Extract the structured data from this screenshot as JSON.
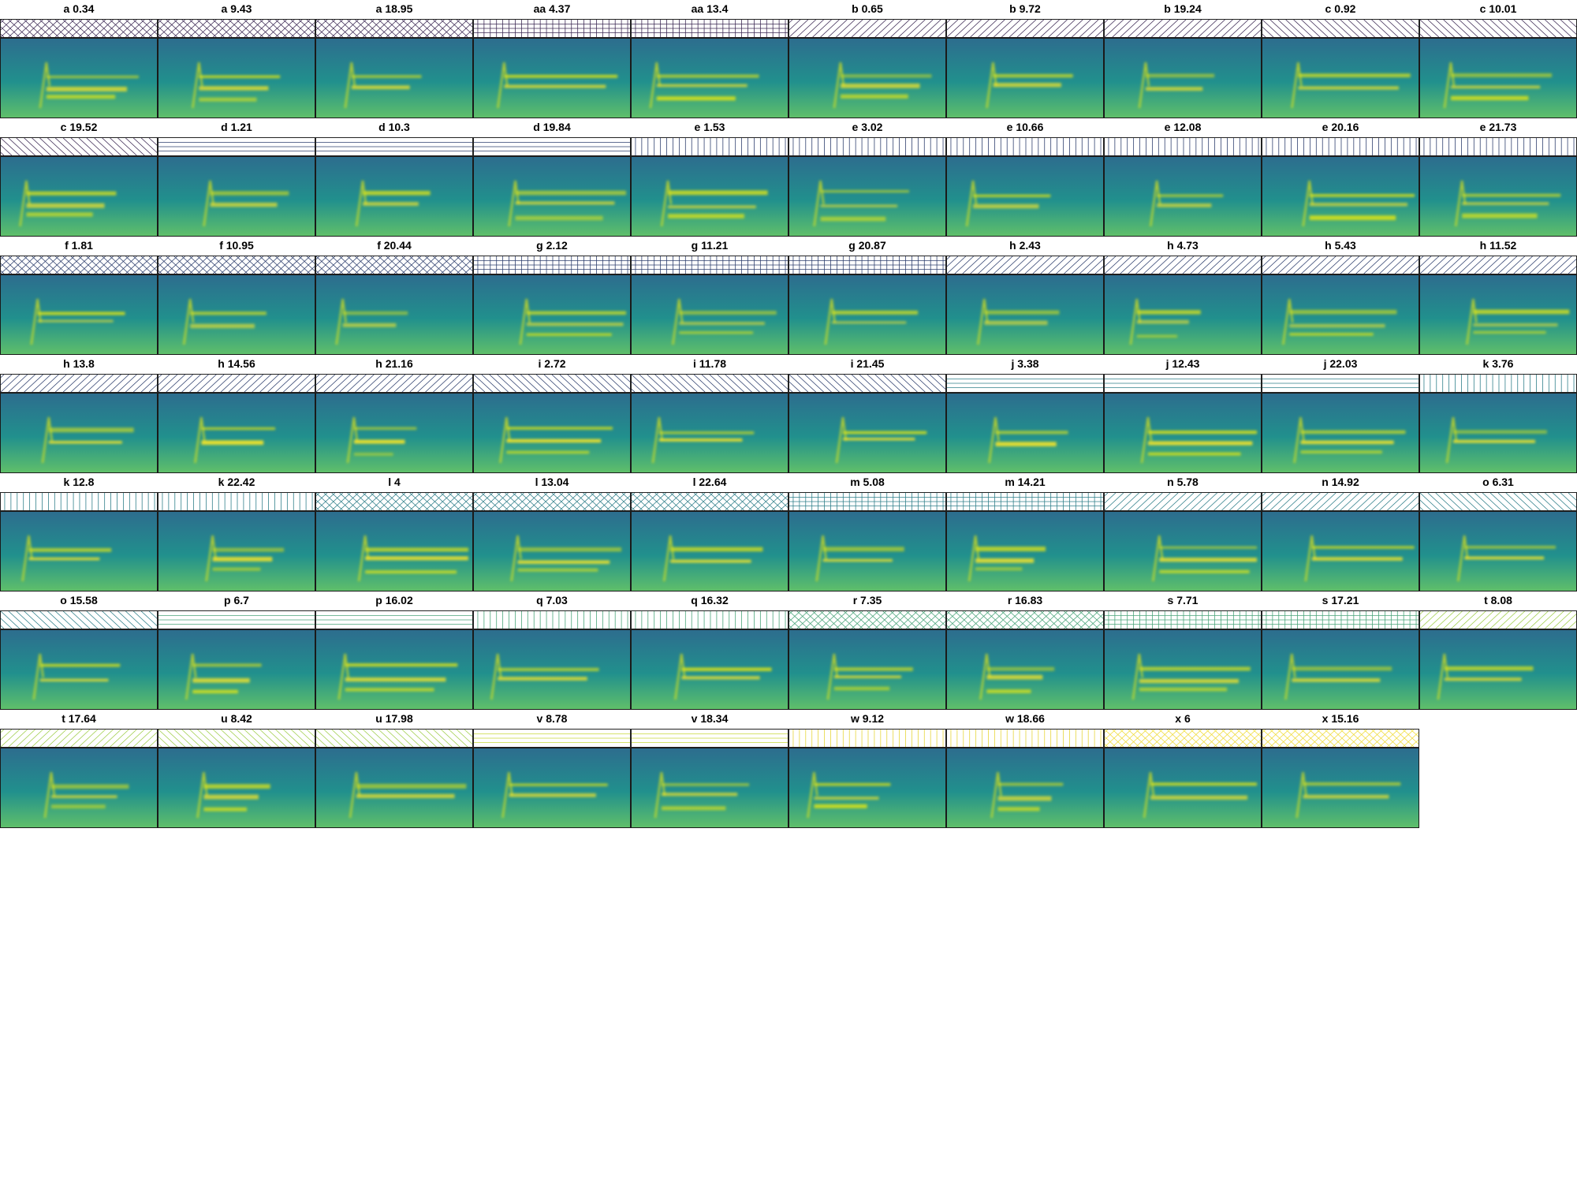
{
  "colors": {
    "hatch_dark": "#3d2a55",
    "hatch_navy": "#2e3f6e",
    "hatch_teal": "#2f7f8a",
    "hatch_green": "#4aa57a",
    "hatch_lime": "#9fce4a",
    "hatch_yellow": "#e6d53a",
    "spectro_bg_dark": "#2d6d8e",
    "spectro_bg_mid": "#21908d",
    "spectro_bright": "#d8e219",
    "spectro_hot": "#fde725"
  },
  "panels": [
    {
      "label": "a 0.34",
      "hatch": "cross",
      "hatch_color": "#3d2a55"
    },
    {
      "label": "a 9.43",
      "hatch": "cross",
      "hatch_color": "#3d2a55"
    },
    {
      "label": "a 18.95",
      "hatch": "cross",
      "hatch_color": "#3d2a55"
    },
    {
      "label": "aa 4.37",
      "hatch": "grid",
      "hatch_color": "#3d2a55"
    },
    {
      "label": "aa 13.4",
      "hatch": "grid",
      "hatch_color": "#3d2a55"
    },
    {
      "label": "b 0.65",
      "hatch": "fwd",
      "hatch_color": "#3d2a55"
    },
    {
      "label": "b 9.72",
      "hatch": "fwd",
      "hatch_color": "#3d2a55"
    },
    {
      "label": "b 19.24",
      "hatch": "fwd",
      "hatch_color": "#3d2a55"
    },
    {
      "label": "c 0.92",
      "hatch": "back",
      "hatch_color": "#3d2a55"
    },
    {
      "label": "c 10.01",
      "hatch": "back",
      "hatch_color": "#3d2a55"
    },
    {
      "label": "c 19.52",
      "hatch": "back",
      "hatch_color": "#3d2a55"
    },
    {
      "label": "d 1.21",
      "hatch": "horiz",
      "hatch_color": "#2e3f6e"
    },
    {
      "label": "d 10.3",
      "hatch": "horiz",
      "hatch_color": "#2e3f6e"
    },
    {
      "label": "d 19.84",
      "hatch": "horiz",
      "hatch_color": "#2e3f6e"
    },
    {
      "label": "e 1.53",
      "hatch": "vert",
      "hatch_color": "#2e3f6e"
    },
    {
      "label": "e 3.02",
      "hatch": "vert",
      "hatch_color": "#2e3f6e"
    },
    {
      "label": "e 10.66",
      "hatch": "vert",
      "hatch_color": "#2e3f6e"
    },
    {
      "label": "e 12.08",
      "hatch": "vert",
      "hatch_color": "#2e3f6e"
    },
    {
      "label": "e 20.16",
      "hatch": "vert",
      "hatch_color": "#2e3f6e"
    },
    {
      "label": "e 21.73",
      "hatch": "vert",
      "hatch_color": "#2e3f6e"
    },
    {
      "label": "f 1.81",
      "hatch": "cross",
      "hatch_color": "#2e3f6e"
    },
    {
      "label": "f 10.95",
      "hatch": "cross",
      "hatch_color": "#2e3f6e"
    },
    {
      "label": "f 20.44",
      "hatch": "cross",
      "hatch_color": "#2e3f6e"
    },
    {
      "label": "g 2.12",
      "hatch": "grid",
      "hatch_color": "#2e3f6e"
    },
    {
      "label": "g 11.21",
      "hatch": "grid",
      "hatch_color": "#2e3f6e"
    },
    {
      "label": "g 20.87",
      "hatch": "grid",
      "hatch_color": "#2e3f6e"
    },
    {
      "label": "h 2.43",
      "hatch": "fwd",
      "hatch_color": "#2e3f6e"
    },
    {
      "label": "h 4.73",
      "hatch": "fwd",
      "hatch_color": "#2e3f6e"
    },
    {
      "label": "h 5.43",
      "hatch": "fwd",
      "hatch_color": "#2e3f6e"
    },
    {
      "label": "h 11.52",
      "hatch": "fwd",
      "hatch_color": "#2e3f6e"
    },
    {
      "label": "h 13.8",
      "hatch": "fwd",
      "hatch_color": "#2e3f6e"
    },
    {
      "label": "h 14.56",
      "hatch": "fwd",
      "hatch_color": "#2e3f6e"
    },
    {
      "label": "h 21.16",
      "hatch": "fwd",
      "hatch_color": "#2e3f6e"
    },
    {
      "label": "i 2.72",
      "hatch": "back",
      "hatch_color": "#2e3f6e"
    },
    {
      "label": "i 11.78",
      "hatch": "back",
      "hatch_color": "#2e3f6e"
    },
    {
      "label": "i 21.45",
      "hatch": "back",
      "hatch_color": "#2e3f6e"
    },
    {
      "label": "j 3.38",
      "hatch": "horiz",
      "hatch_color": "#2f7f8a"
    },
    {
      "label": "j 12.43",
      "hatch": "horiz",
      "hatch_color": "#2f7f8a"
    },
    {
      "label": "j 22.03",
      "hatch": "horiz",
      "hatch_color": "#2f7f8a"
    },
    {
      "label": "k 3.76",
      "hatch": "vert",
      "hatch_color": "#2f7f8a"
    },
    {
      "label": "k 12.8",
      "hatch": "vert",
      "hatch_color": "#2f7f8a"
    },
    {
      "label": "k 22.42",
      "hatch": "vert",
      "hatch_color": "#2f7f8a"
    },
    {
      "label": "l 4",
      "hatch": "cross",
      "hatch_color": "#2f7f8a"
    },
    {
      "label": "l 13.04",
      "hatch": "cross",
      "hatch_color": "#2f7f8a"
    },
    {
      "label": "l 22.64",
      "hatch": "cross",
      "hatch_color": "#2f7f8a"
    },
    {
      "label": "m 5.08",
      "hatch": "grid",
      "hatch_color": "#2f7f8a"
    },
    {
      "label": "m 14.21",
      "hatch": "grid",
      "hatch_color": "#2f7f8a"
    },
    {
      "label": "n 5.78",
      "hatch": "fwd",
      "hatch_color": "#2f7f8a"
    },
    {
      "label": "n 14.92",
      "hatch": "fwd",
      "hatch_color": "#2f7f8a"
    },
    {
      "label": "o 6.31",
      "hatch": "back",
      "hatch_color": "#2f7f8a"
    },
    {
      "label": "o 15.58",
      "hatch": "back",
      "hatch_color": "#2f7f8a"
    },
    {
      "label": "p 6.7",
      "hatch": "horiz",
      "hatch_color": "#4aa57a"
    },
    {
      "label": "p 16.02",
      "hatch": "horiz",
      "hatch_color": "#4aa57a"
    },
    {
      "label": "q 7.03",
      "hatch": "vert",
      "hatch_color": "#4aa57a"
    },
    {
      "label": "q 16.32",
      "hatch": "vert",
      "hatch_color": "#4aa57a"
    },
    {
      "label": "r 7.35",
      "hatch": "cross",
      "hatch_color": "#4aa57a"
    },
    {
      "label": "r 16.83",
      "hatch": "cross",
      "hatch_color": "#4aa57a"
    },
    {
      "label": "s 7.71",
      "hatch": "grid",
      "hatch_color": "#4aa57a"
    },
    {
      "label": "s 17.21",
      "hatch": "grid",
      "hatch_color": "#4aa57a"
    },
    {
      "label": "t 8.08",
      "hatch": "fwd",
      "hatch_color": "#9fce4a"
    },
    {
      "label": "t 17.64",
      "hatch": "fwd",
      "hatch_color": "#9fce4a"
    },
    {
      "label": "u 8.42",
      "hatch": "back",
      "hatch_color": "#9fce4a"
    },
    {
      "label": "u 17.98",
      "hatch": "back",
      "hatch_color": "#9fce4a"
    },
    {
      "label": "v 8.78",
      "hatch": "horiz",
      "hatch_color": "#c9d83a"
    },
    {
      "label": "v 18.34",
      "hatch": "horiz",
      "hatch_color": "#c9d83a"
    },
    {
      "label": "w 9.12",
      "hatch": "vert",
      "hatch_color": "#e6d53a"
    },
    {
      "label": "w 18.66",
      "hatch": "vert",
      "hatch_color": "#e6d53a"
    },
    {
      "label": "x 6",
      "hatch": "cross",
      "hatch_color": "#f0dc3a"
    },
    {
      "label": "x 15.16",
      "hatch": "cross",
      "hatch_color": "#f0dc3a"
    }
  ]
}
